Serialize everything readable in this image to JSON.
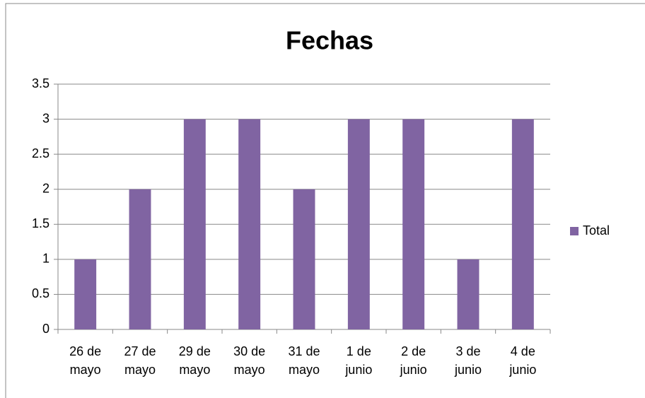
{
  "chart_data": {
    "type": "bar",
    "title": "Fechas",
    "categories": [
      "26 de mayo",
      "27 de mayo",
      "29 de mayo",
      "30 de mayo",
      "31 de mayo",
      "1 de junio",
      "2 de junio",
      "3 de junio",
      "4 de junio"
    ],
    "series": [
      {
        "name": "Total",
        "color": "#8064a2",
        "values": [
          1,
          2,
          3,
          3,
          2,
          3,
          3,
          1,
          3
        ]
      }
    ],
    "ylim": [
      0,
      3.5
    ],
    "yticks": [
      0,
      0.5,
      1,
      1.5,
      2,
      2.5,
      3,
      3.5
    ],
    "grid": true,
    "legend": "right"
  }
}
